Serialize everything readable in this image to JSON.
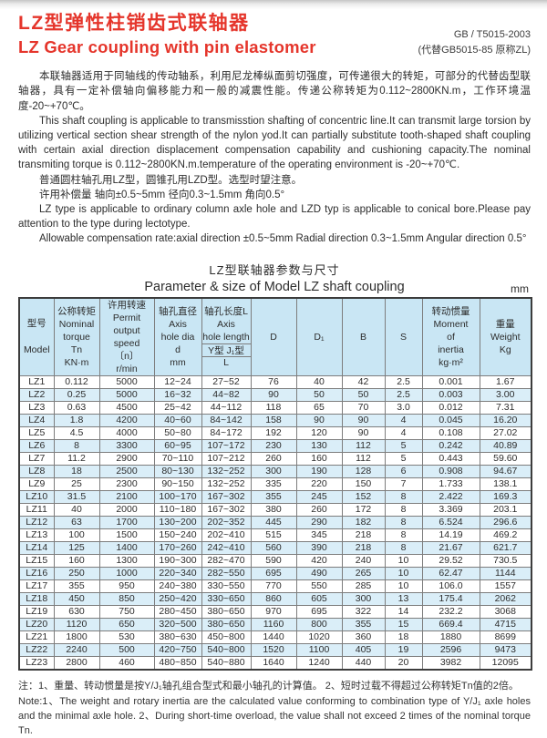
{
  "page": {
    "title_zh": "LZ型弹性柱销齿式联轴器",
    "title_en": "LZ Gear coupling with pin elastomer",
    "standard_code": "GB / T5015-2003",
    "standard_note": "(代替GB5015-85 原称ZL)"
  },
  "intro": {
    "para_zh": "本联轴器适用于同轴线的传动轴系，利用尼龙棒纵面剪切强度，可传递很大的转矩，可部分的代替齿型联轴器，具有一定补偿轴向偏移能力和一般的减震性能。传递公称转矩为0.112~2800KN.m，工作环境温度-20~+70℃。",
    "para_en": "This shaft coupling is applicable to transmisstion shafting of concentric line.It can transmit large torsion by utilizing vertical section shear strength of the nylon yod.It can partially substitute tooth-shaped shaft coupling with certain axial direction displacement compensation capability and cushioning capacity.The nominal transmiting torque is 0.112~2800KN.m.temperature of the operating environment is -20~+70℃.",
    "type_note_zh": "普通圆柱轴孔用LZ型，圆锥孔用LZD型。选型时望注意。",
    "compensation_zh": "许用补偿量  轴向±0.5~5mm  径向0.3~1.5mm  角向0.5°",
    "type_note_en": "LZ type is applicable to ordinary column axle hole and LZD typ is applicable to conical bore.Please pay attention to the type during lectotype.",
    "compensation_en": "Allowable compensation rate:axial direction ±0.5~5mm  Radial direction 0.3~1.5mm  Angular direction 0.5°"
  },
  "table": {
    "title_zh": "LZ型联轴器参数与尺寸",
    "title_en": "Parameter & size of Model LZ shaft coupling",
    "unit": "mm",
    "columns": {
      "model": {
        "zh": "型号",
        "en": "Model"
      },
      "torque": {
        "zh": "公称转矩",
        "en1": "Nominal",
        "en2": "torque",
        "symbol": "Tn",
        "unit": "KN·m"
      },
      "speed": {
        "zh": "许用转速",
        "en1": "Permit",
        "en2": "output speed",
        "symbol": "〔n〕",
        "unit": "r/min"
      },
      "dia": {
        "zh": "轴孔直径",
        "en1": "Axis",
        "en2": "hole dia",
        "symbol": "d",
        "unit": "mm"
      },
      "length": {
        "zh": "轴孔长度L",
        "en1": "Axis",
        "en2": "hole length",
        "types": "Y型 J₁型",
        "symbol": "L"
      },
      "D": "D",
      "D1": "D₁",
      "B": "B",
      "S": "S",
      "inertia": {
        "zh": "转动惯量",
        "en1": "Moment",
        "en2": "of",
        "en3": "inertia",
        "unit": "kg·m²"
      },
      "weight": {
        "zh": "重量",
        "en": "Weight",
        "unit": "Kg"
      }
    },
    "rows": [
      [
        "LZ1",
        "0.112",
        "5000",
        "12~24",
        "27~52",
        "76",
        "40",
        "42",
        "2.5",
        "0.001",
        "1.67"
      ],
      [
        "LZ2",
        "0.25",
        "5000",
        "16~32",
        "44~82",
        "90",
        "50",
        "50",
        "2.5",
        "0.003",
        "3.00"
      ],
      [
        "LZ3",
        "0.63",
        "4500",
        "25~42",
        "44~112",
        "118",
        "65",
        "70",
        "3.0",
        "0.012",
        "7.31"
      ],
      [
        "LZ4",
        "1.8",
        "4200",
        "40~60",
        "84~142",
        "158",
        "90",
        "90",
        "4",
        "0.045",
        "16.20"
      ],
      [
        "LZ5",
        "4.5",
        "4000",
        "50~80",
        "84~172",
        "192",
        "120",
        "90",
        "4",
        "0.108",
        "27.02"
      ],
      [
        "LZ6",
        "8",
        "3300",
        "60~95",
        "107~172",
        "230",
        "130",
        "112",
        "5",
        "0.242",
        "40.89"
      ],
      [
        "LZ7",
        "11.2",
        "2900",
        "70~110",
        "107~212",
        "260",
        "160",
        "112",
        "5",
        "0.443",
        "59.60"
      ],
      [
        "LZ8",
        "18",
        "2500",
        "80~130",
        "132~252",
        "300",
        "190",
        "128",
        "6",
        "0.908",
        "94.67"
      ],
      [
        "LZ9",
        "25",
        "2300",
        "90~150",
        "132~252",
        "335",
        "220",
        "150",
        "7",
        "1.733",
        "138.1"
      ],
      [
        "LZ10",
        "31.5",
        "2100",
        "100~170",
        "167~302",
        "355",
        "245",
        "152",
        "8",
        "2.422",
        "169.3"
      ],
      [
        "LZ11",
        "40",
        "2000",
        "110~180",
        "167~302",
        "380",
        "260",
        "172",
        "8",
        "3.369",
        "203.1"
      ],
      [
        "LZ12",
        "63",
        "1700",
        "130~200",
        "202~352",
        "445",
        "290",
        "182",
        "8",
        "6.524",
        "296.6"
      ],
      [
        "LZ13",
        "100",
        "1500",
        "150~240",
        "202~410",
        "515",
        "345",
        "218",
        "8",
        "14.19",
        "469.2"
      ],
      [
        "LZ14",
        "125",
        "1400",
        "170~260",
        "242~410",
        "560",
        "390",
        "218",
        "8",
        "21.67",
        "621.7"
      ],
      [
        "LZ15",
        "160",
        "1300",
        "190~300",
        "282~470",
        "590",
        "420",
        "240",
        "10",
        "29.52",
        "730.5"
      ],
      [
        "LZ16",
        "250",
        "1000",
        "220~340",
        "282~550",
        "695",
        "490",
        "265",
        "10",
        "62.47",
        "1144"
      ],
      [
        "LZ17",
        "355",
        "950",
        "240~380",
        "330~550",
        "770",
        "550",
        "285",
        "10",
        "106.0",
        "1557"
      ],
      [
        "LZ18",
        "450",
        "850",
        "250~420",
        "330~650",
        "860",
        "605",
        "300",
        "13",
        "175.4",
        "2062"
      ],
      [
        "LZ19",
        "630",
        "750",
        "280~450",
        "380~650",
        "970",
        "695",
        "322",
        "14",
        "232.2",
        "3068"
      ],
      [
        "LZ20",
        "1120",
        "650",
        "320~500",
        "380~650",
        "1160",
        "800",
        "355",
        "15",
        "669.4",
        "4715"
      ],
      [
        "LZ21",
        "1800",
        "530",
        "380~630",
        "450~800",
        "1440",
        "1020",
        "360",
        "18",
        "1880",
        "8699"
      ],
      [
        "LZ22",
        "2240",
        "500",
        "420~750",
        "540~800",
        "1520",
        "1100",
        "405",
        "19",
        "2596",
        "9473"
      ],
      [
        "LZ23",
        "2800",
        "460",
        "480~850",
        "540~880",
        "1640",
        "1240",
        "440",
        "20",
        "3982",
        "12095"
      ]
    ]
  },
  "notes": {
    "zh": "注：1、重量、转动惯量是按Y/J₁轴孔组合型式和最小轴孔的计算值。 2、短时过载不得超过公称转矩Tn值的2倍。",
    "en": "Note:1、The weight and rotary inertia are the calculated value conforming to combination type of Y/J₁ axle holes and the minimal axle hole.  2、During short-time overload, the value shall not exceed 2 times of the nominal torque Tn."
  },
  "colors": {
    "accent_red": "#e5352b",
    "table_header_bg": "#c9e6f4",
    "table_alt_row_bg": "#daeef8"
  }
}
